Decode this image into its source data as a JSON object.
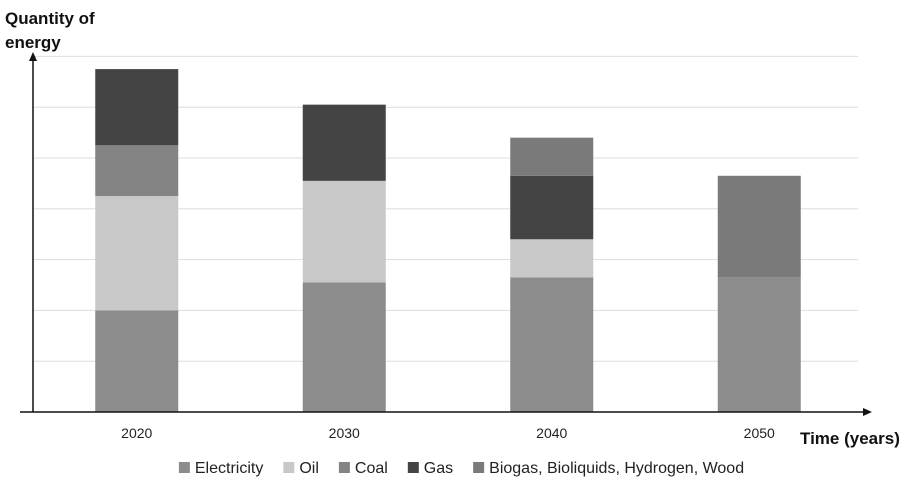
{
  "chart_data": {
    "type": "bar",
    "stacked": true,
    "categories": [
      "2020",
      "2030",
      "2040",
      "2050"
    ],
    "series": [
      {
        "name": "Electricity",
        "values": [
          2.0,
          2.55,
          2.65,
          2.65
        ],
        "color": "#8c8c8c"
      },
      {
        "name": "Oil",
        "values": [
          2.25,
          2.0,
          0.75,
          0
        ],
        "color": "#c8c8c8"
      },
      {
        "name": "Coal",
        "values": [
          1.0,
          0,
          0,
          0
        ],
        "color": "#848484"
      },
      {
        "name": "Gas",
        "values": [
          1.5,
          1.5,
          1.25,
          0
        ],
        "color": "#444444"
      },
      {
        "name": "Biogas, Bioliquids, Hydrogen, Wood",
        "values": [
          0,
          0,
          0.75,
          2.0
        ],
        "color": "#7a7a7a"
      }
    ],
    "ylim": [
      0,
      7.5
    ],
    "ylabel": "Quantity of energy",
    "xlabel": "Time (years)",
    "grid": true,
    "legend_position": "bottom"
  }
}
